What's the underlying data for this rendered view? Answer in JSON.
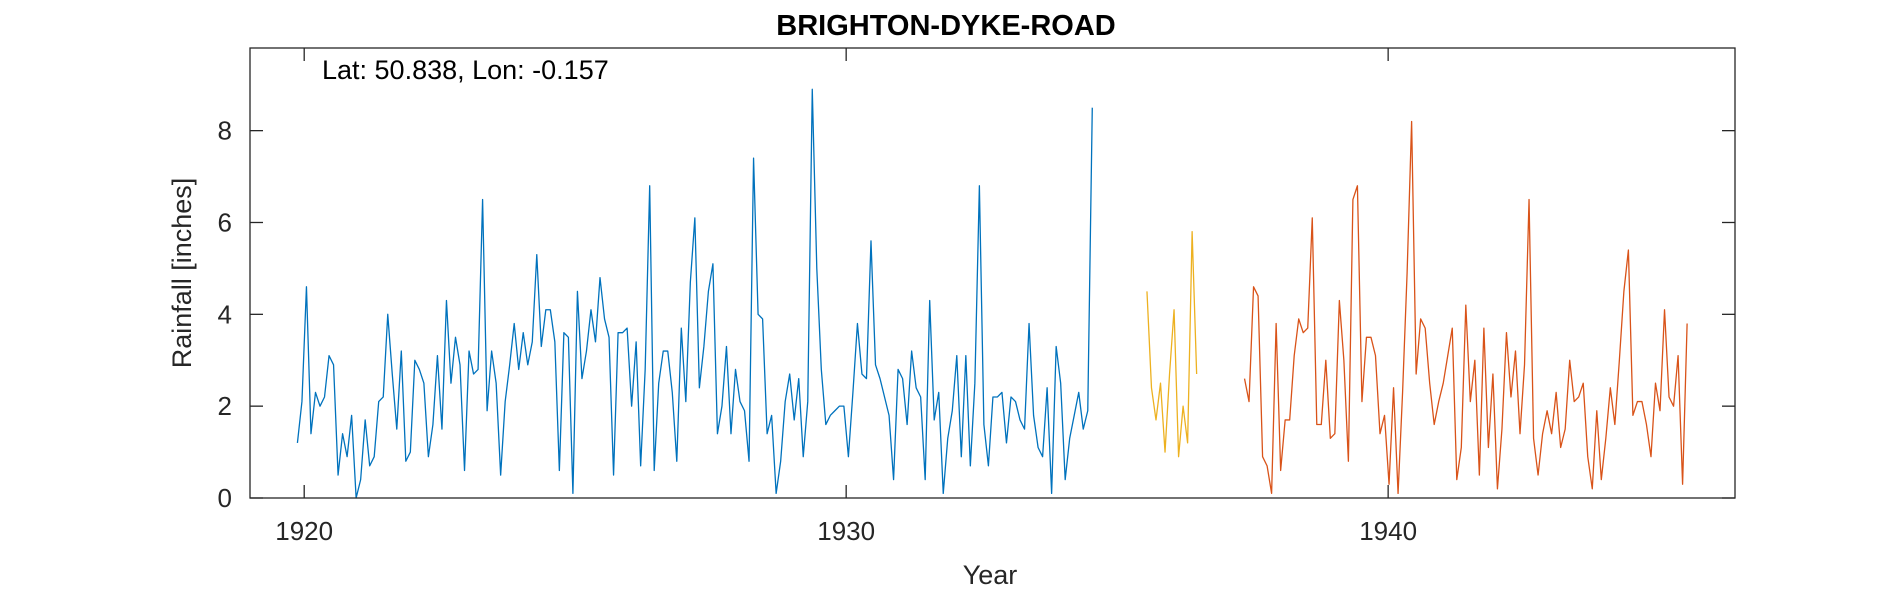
{
  "chart_data": {
    "type": "line",
    "title": "BRIGHTON-DYKE-ROAD",
    "annotation": "Lat: 50.838, Lon: -0.157",
    "xlabel": "Year",
    "ylabel": "Rainfall [inches]",
    "xlim": [
      1919,
      1946.4
    ],
    "ylim": [
      0,
      9.8
    ],
    "xticks": [
      1920,
      1930,
      1940
    ],
    "yticks": [
      0,
      2,
      4,
      6,
      8
    ],
    "grid": false,
    "colors": [
      "#0072BD",
      "#EDB120",
      "#D95319"
    ],
    "series": [
      {
        "x_start": 1919.875,
        "step": 0.08333,
        "values": [
          1.2,
          2.1,
          4.6,
          1.4,
          2.3,
          2.0,
          2.2,
          3.1,
          2.9,
          0.5,
          1.4,
          0.9,
          1.8,
          0.0,
          0.4,
          1.7,
          0.7,
          0.9,
          2.1,
          2.2,
          4.0,
          2.7,
          1.5,
          3.2,
          0.8,
          1.0,
          3.0,
          2.8,
          2.5,
          0.9,
          1.6,
          3.1,
          1.5,
          4.3,
          2.5,
          3.5,
          2.9,
          0.6,
          3.2,
          2.7,
          2.8,
          6.5,
          1.9,
          3.2,
          2.5,
          0.5,
          2.1,
          2.9,
          3.8,
          2.8,
          3.6,
          2.9,
          3.4,
          5.3,
          3.3,
          4.1,
          4.1,
          3.4,
          0.6,
          3.6,
          3.5,
          0.1,
          4.5,
          2.6,
          3.2,
          4.1,
          3.4,
          4.8,
          3.9,
          3.5,
          0.5,
          3.6,
          3.6,
          3.7,
          2.0,
          3.4,
          0.7,
          2.8,
          6.8,
          0.6,
          2.5,
          3.2,
          3.2,
          2.3,
          0.8,
          3.7,
          2.1,
          4.7,
          6.1,
          2.4,
          3.3,
          4.5,
          5.1,
          1.4,
          2.0,
          3.3,
          1.4,
          2.8,
          2.1,
          1.9,
          0.8,
          7.4,
          4.0,
          3.9,
          1.4,
          1.8,
          0.1,
          0.8,
          2.1,
          2.7,
          1.7,
          2.6,
          0.9,
          2.1,
          8.9,
          5.0,
          2.8,
          1.6,
          1.8,
          1.9,
          2.0,
          2.0,
          0.9,
          2.3,
          3.8,
          2.7,
          2.6,
          5.6,
          2.9,
          2.6,
          2.2,
          1.8,
          0.4,
          2.8,
          2.6,
          1.6,
          3.2,
          2.4,
          2.2,
          0.4,
          4.3,
          1.7,
          2.3,
          0.1,
          1.3,
          1.9,
          3.1,
          0.9,
          3.1,
          0.7,
          2.5,
          6.8,
          1.6,
          0.7,
          2.2,
          2.2,
          2.3,
          1.2,
          2.2,
          2.1,
          1.7,
          1.5,
          3.8,
          1.8,
          1.1,
          0.9,
          2.4,
          0.1,
          3.3,
          2.5,
          0.4,
          1.3,
          1.8,
          2.3,
          1.5,
          1.9,
          8.5
        ]
      },
      {
        "x_start": 1935.55,
        "step": 0.08333,
        "values": [
          4.5,
          2.4,
          1.7,
          2.5,
          1.0,
          2.7,
          4.1,
          0.9,
          2.0,
          1.2,
          5.8,
          2.7
        ]
      },
      {
        "x_start": 1937.35,
        "step": 0.08333,
        "values": [
          2.6,
          2.1,
          4.6,
          4.4,
          0.9,
          0.7,
          0.1,
          3.8,
          0.6,
          1.7,
          1.7,
          3.1,
          3.9,
          3.6,
          3.7,
          6.1,
          1.6,
          1.6,
          3.0,
          1.3,
          1.4,
          4.3,
          3.0,
          0.8,
          6.5,
          6.8,
          2.1,
          3.5,
          3.5,
          3.1,
          1.4,
          1.8,
          0.3,
          2.4,
          0.1,
          2.3,
          4.9,
          8.2,
          2.7,
          3.9,
          3.7,
          2.5,
          1.6,
          2.1,
          2.5,
          3.1,
          3.7,
          0.4,
          1.1,
          4.2,
          2.1,
          3.0,
          0.5,
          3.7,
          1.1,
          2.7,
          0.2,
          1.5,
          3.6,
          2.2,
          3.2,
          1.4,
          2.9,
          6.5,
          1.3,
          0.5,
          1.4,
          1.9,
          1.4,
          2.3,
          1.1,
          1.5,
          3.0,
          2.1,
          2.2,
          2.5,
          0.9,
          0.2,
          1.9,
          0.4,
          1.3,
          2.4,
          1.6,
          3.0,
          4.5,
          5.4,
          1.8,
          2.1,
          2.1,
          1.6,
          0.9,
          2.5,
          1.9,
          4.1,
          2.2,
          2.0,
          3.1,
          0.3,
          3.8
        ]
      }
    ]
  }
}
